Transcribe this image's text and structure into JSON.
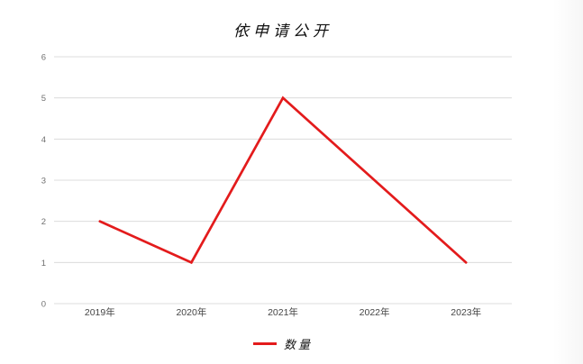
{
  "chart_data": {
    "type": "line",
    "title": "依申请公开",
    "categories": [
      "2019年",
      "2020年",
      "2021年",
      "2022年",
      "2023年"
    ],
    "series": [
      {
        "name": "数量",
        "values": [
          2,
          1,
          5,
          3,
          1
        ]
      }
    ],
    "xlabel": "",
    "ylabel": "",
    "ylim": [
      0,
      6
    ],
    "ytick_step": 1,
    "yticks": [
      0,
      1,
      2,
      3,
      4,
      5,
      6
    ],
    "grid": true,
    "legend_position": "bottom"
  },
  "colors": {
    "series_line": "#e31b1c",
    "gridline": "#dcdcdc",
    "y_tick_text": "#707070",
    "x_tick_text": "#454545",
    "title_text": "#111111",
    "background": "#ffffff"
  },
  "legend": {
    "label": "数量"
  }
}
